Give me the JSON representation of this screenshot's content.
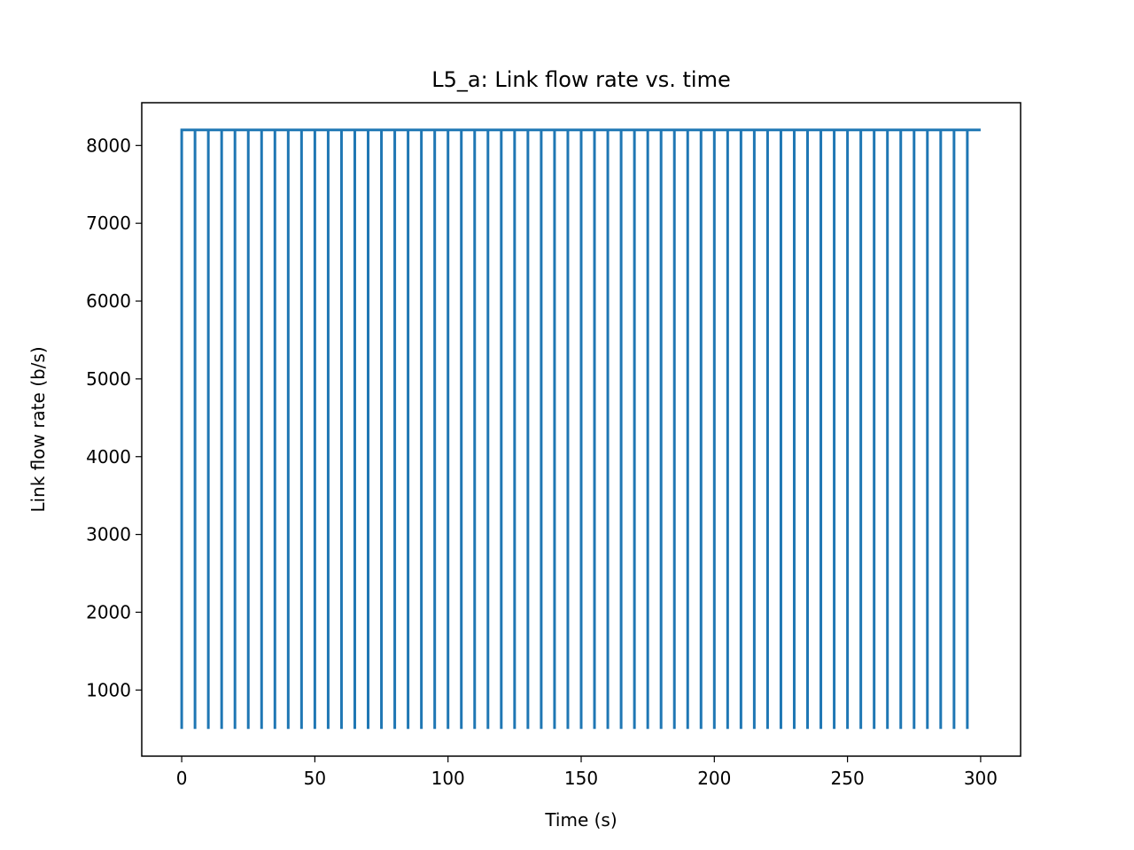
{
  "chart_data": {
    "type": "line",
    "title": "L5_a: Link flow rate vs. time",
    "xlabel": "Time (s)",
    "ylabel": "Link flow rate (b/s)",
    "xlim": [
      -15,
      315
    ],
    "ylim": [
      150,
      8550
    ],
    "xticks": [
      0,
      50,
      100,
      150,
      200,
      250,
      300
    ],
    "yticks": [
      1000,
      2000,
      3000,
      4000,
      5000,
      6000,
      7000,
      8000
    ],
    "grid": false,
    "legend": "none",
    "series": [
      {
        "color": "#1f77b4",
        "pattern": {
          "high_value": 8200,
          "low_value": 500,
          "start_time": 0,
          "end_time": 300,
          "period_s": 5,
          "last_dip_time": 295
        }
      }
    ]
  }
}
